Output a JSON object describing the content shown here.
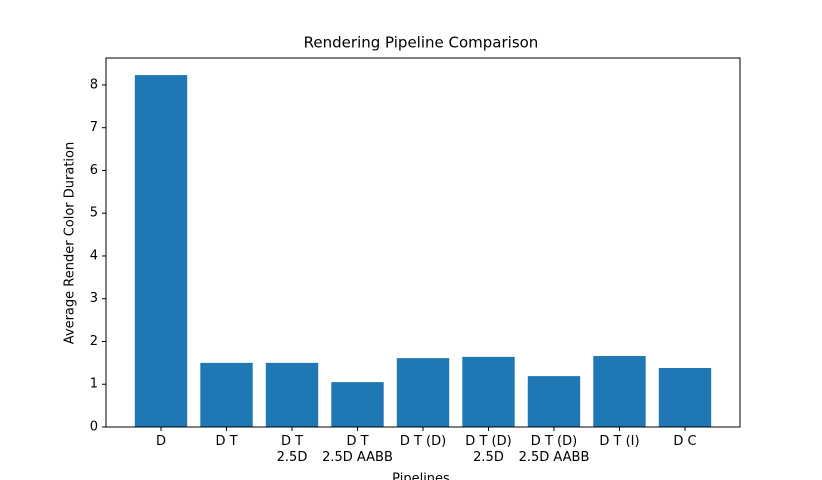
{
  "chart_data": {
    "type": "bar",
    "title": "Rendering Pipeline Comparison",
    "x_label": "Pipelines",
    "y_label": "Average Render Color Duration",
    "categories": [
      "D",
      "D T",
      "D T\n2.5D",
      "D T\n2.5D AABB",
      "D T (D)",
      "D T (D)\n2.5D",
      "D T (D)\n2.5D AABB",
      "D T (I)",
      "D C"
    ],
    "values": [
      8.23,
      1.5,
      1.5,
      1.05,
      1.61,
      1.64,
      1.19,
      1.66,
      1.38
    ],
    "color": "#1f77b4",
    "ylim": [
      0,
      8.63
    ],
    "yticks": [
      0,
      1,
      2,
      3,
      4,
      5,
      6,
      7,
      8
    ],
    "grid": false
  }
}
